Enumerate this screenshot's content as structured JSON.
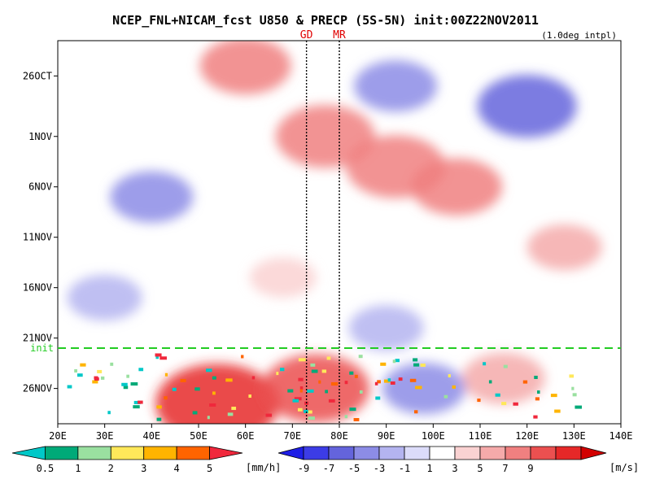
{
  "chart_data": {
    "type": "heatmap",
    "title": "NCEP_FNL+NICAM_fcst U850 & PRECP (5S-5N) init:00Z22NOV2011",
    "note": "(1.0deg intpl)",
    "x_ticks": [
      "20E",
      "30E",
      "40E",
      "50E",
      "60E",
      "70E",
      "80E",
      "90E",
      "100E",
      "110E",
      "120E",
      "130E",
      "140E"
    ],
    "x_range": [
      20,
      140
    ],
    "y_ticks": [
      "26OCT",
      "1NOV",
      "6NOV",
      "11NOV",
      "16NOV",
      "21NOV",
      "26NOV"
    ],
    "y_tick_days": [
      0,
      6,
      11,
      16,
      21,
      26,
      31
    ],
    "y_range_days": [
      -3.5,
      34.5
    ],
    "init_label": "init",
    "init_day": 27,
    "markers": [
      {
        "label": "GD",
        "lon": 73
      },
      {
        "label": "MR",
        "lon": 80
      }
    ],
    "u850_features": [
      {
        "lon": 60,
        "day": -1,
        "value": 6
      },
      {
        "lon": 77,
        "day": 6,
        "value": 7
      },
      {
        "lon": 92,
        "day": 9,
        "value": 7
      },
      {
        "lon": 105,
        "day": 11,
        "value": 6
      },
      {
        "lon": 128,
        "day": 17,
        "value": 4
      },
      {
        "lon": 54,
        "day": 32.5,
        "value": 10
      },
      {
        "lon": 75,
        "day": 31,
        "value": 8
      },
      {
        "lon": 115,
        "day": 30,
        "value": 5
      },
      {
        "lon": 120,
        "day": 3,
        "value": -7
      },
      {
        "lon": 92,
        "day": 1,
        "value": -5
      },
      {
        "lon": 40,
        "day": 12,
        "value": -5
      },
      {
        "lon": 30,
        "day": 22,
        "value": -4
      },
      {
        "lon": 90,
        "day": 25,
        "value": -4
      },
      {
        "lon": 98,
        "day": 31,
        "value": -5
      },
      {
        "lon": 68,
        "day": 20,
        "value": 3
      }
    ],
    "precip_colorbar": {
      "labels": [
        "0.5",
        "1",
        "2",
        "3",
        "4",
        "5"
      ],
      "unit": "[mm/h]",
      "colors": [
        "#00c8c8",
        "#00aa78",
        "#9ae0a0",
        "#ffe85a",
        "#ffb400",
        "#ff6400",
        "#f0283c"
      ]
    },
    "u850_colorbar": {
      "labels": [
        "-9",
        "-7",
        "-5",
        "-3",
        "-1",
        "1",
        "3",
        "5",
        "7",
        "9"
      ],
      "unit": "[m/s]",
      "colors": [
        "#1e1ee6",
        "#3c3ce6",
        "#6464dc",
        "#8c8ce6",
        "#b4b4f0",
        "#dcdcfa",
        "#ffffff",
        "#fad2d2",
        "#f5aaaa",
        "#f08080",
        "#eb5050",
        "#e62828",
        "#d20000"
      ]
    }
  }
}
